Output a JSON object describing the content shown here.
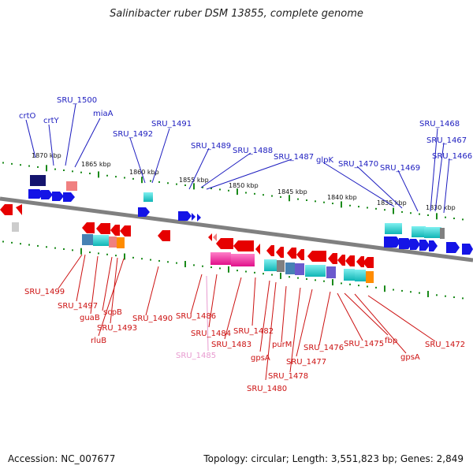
{
  "title": "Salinibacter ruber DSM 13855, complete genome",
  "footer": {
    "accession": "Accession: NC_007677",
    "summary": "Topology: circular; Length: 3,551,823 bp; Genes: 2,849"
  },
  "scale": [
    "1870 kbp",
    "1865 kbp",
    "1860 kbp",
    "1855 kbp",
    "1850 kbp",
    "1845 kbp",
    "1840 kbp",
    "1835 kbp",
    "1830 kbp"
  ],
  "top_labels": [
    "crtO",
    "crtY",
    "SRU_1500",
    "miaA",
    "SRU_1492",
    "SRU_1491",
    "SRU_1489",
    "SRU_1488",
    "SRU_1487",
    "glpK",
    "SRU_1470",
    "SRU_1469",
    "SRU_1468",
    "SRU_1467",
    "SRU_1466"
  ],
  "bottom_labels": [
    "SRU_1499",
    "SRU_1497",
    "guaB",
    "scpB",
    "SRU_1493",
    "rluB",
    "SRU_1490",
    "SRU_1486",
    "SRU_1485",
    "SRU_1484",
    "SRU_1483",
    "SRU_1482",
    "gpsA",
    "SRU_1480",
    "purM",
    "SRU_1478",
    "SRU_1477",
    "SRU_1476",
    "SRU_1475",
    "fbp",
    "gpsA",
    "SRU_1472"
  ],
  "colors": {
    "forward_gene": "#1414e6",
    "reverse_gene": "#e60000",
    "cyan_feature": "#19d3d3",
    "magenta_feature": "#ff1493",
    "navy_feature": "#14146e",
    "salmon_feature": "#f08080",
    "steel_feature": "#4682b4",
    "slate_feature": "#6a5acd",
    "orange_feature": "#ff8c00",
    "grey_feature": "#808080",
    "backbone": "#808080",
    "tick": "#1a8a1a"
  }
}
